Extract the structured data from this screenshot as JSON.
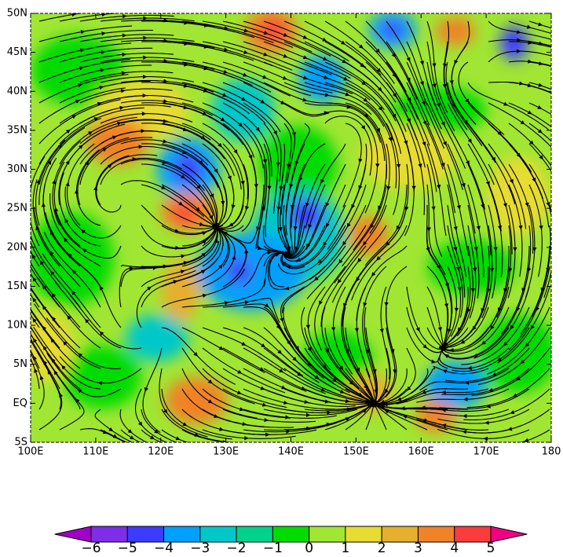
{
  "chart_data": {
    "type": "contour",
    "xlim": [
      100,
      180
    ],
    "ylim": [
      -5,
      50
    ],
    "xticks": [
      {
        "value": 100,
        "label": "100E"
      },
      {
        "value": 110,
        "label": "110E"
      },
      {
        "value": 120,
        "label": "120E"
      },
      {
        "value": 130,
        "label": "130E"
      },
      {
        "value": 140,
        "label": "140E"
      },
      {
        "value": 150,
        "label": "150E"
      },
      {
        "value": 160,
        "label": "160E"
      },
      {
        "value": 170,
        "label": "170E"
      },
      {
        "value": 180,
        "label": "180"
      }
    ],
    "yticks": [
      {
        "value": -5,
        "label": "5S"
      },
      {
        "value": 0,
        "label": "EQ"
      },
      {
        "value": 5,
        "label": "5N"
      },
      {
        "value": 10,
        "label": "10N"
      },
      {
        "value": 15,
        "label": "15N"
      },
      {
        "value": 20,
        "label": "20N"
      },
      {
        "value": 25,
        "label": "25N"
      },
      {
        "value": 30,
        "label": "30N"
      },
      {
        "value": 35,
        "label": "35N"
      },
      {
        "value": 40,
        "label": "40N"
      },
      {
        "value": 45,
        "label": "45N"
      },
      {
        "value": 50,
        "label": "50N"
      }
    ],
    "colorbar": {
      "levels": [
        {
          "value": -6,
          "label": "−6"
        },
        {
          "value": -5,
          "label": "−5"
        },
        {
          "value": -4,
          "label": "−4"
        },
        {
          "value": -3,
          "label": "−3"
        },
        {
          "value": -2,
          "label": "−2"
        },
        {
          "value": -1,
          "label": "−1"
        },
        0,
        1,
        2,
        3,
        4,
        5
      ],
      "colors": [
        "#a000c8",
        "#7d2ee6",
        "#3c3cff",
        "#00a0ff",
        "#00c8c8",
        "#00d28c",
        "#00dc00",
        "#a0e632",
        "#e6dc32",
        "#e6af2d",
        "#f08228",
        "#fa3c3c",
        "#f00082"
      ]
    }
  }
}
